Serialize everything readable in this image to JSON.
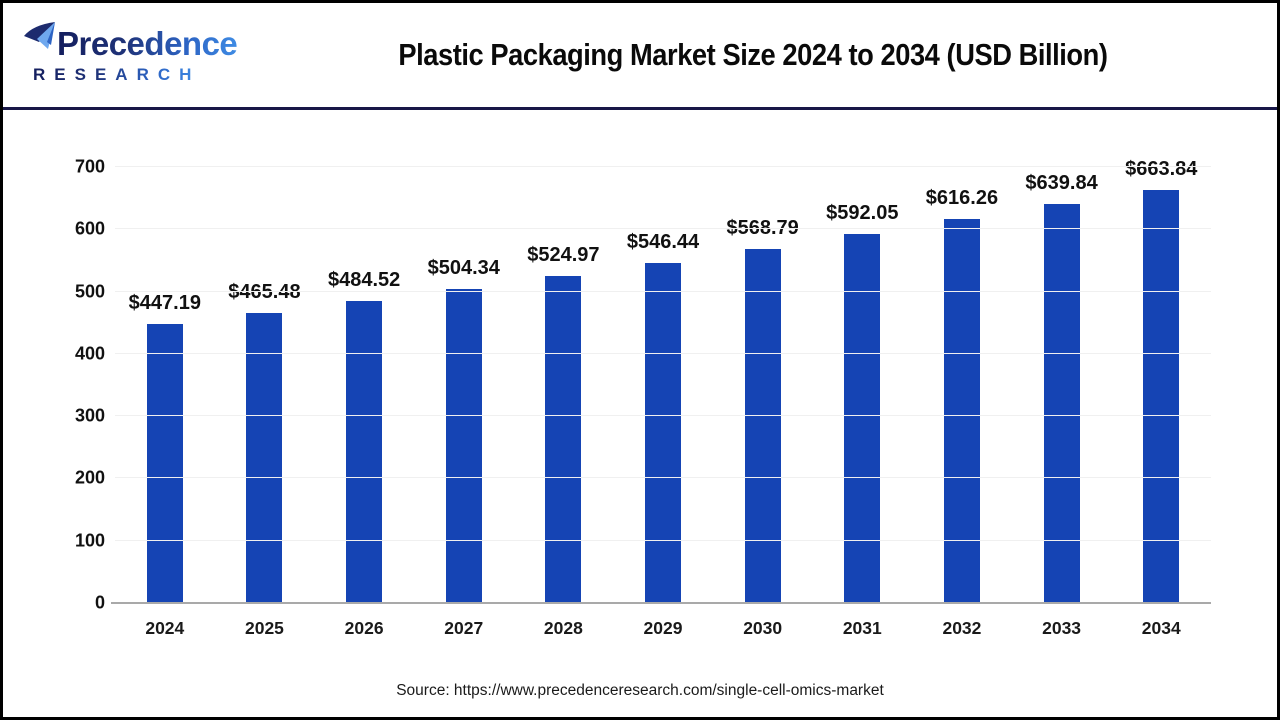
{
  "header": {
    "logo": {
      "name": "Precedence",
      "subtitle": "RESEARCH"
    },
    "title": "Plastic Packaging Market Size 2024 to 2034 (USD Billion)"
  },
  "chart_data": {
    "type": "bar",
    "title": "Plastic Packaging Market Size 2024 to 2034 (USD Billion)",
    "unit": "USD Billion",
    "categories": [
      "2024",
      "2025",
      "2026",
      "2027",
      "2028",
      "2029",
      "2030",
      "2031",
      "2032",
      "2033",
      "2034"
    ],
    "values": [
      447.19,
      465.48,
      484.52,
      504.34,
      524.97,
      546.44,
      568.79,
      592.05,
      616.26,
      639.84,
      663.84
    ],
    "value_labels": [
      "$447.19",
      "$465.48",
      "$484.52",
      "$504.34",
      "$524.97",
      "$546.44",
      "$568.79",
      "$592.05",
      "$616.26",
      "$639.84",
      "$663.84"
    ],
    "xlabel": "",
    "ylabel": "",
    "ylim": [
      0,
      700
    ],
    "yticks": [
      0,
      100,
      200,
      300,
      400,
      500,
      600,
      700
    ],
    "grid": true,
    "legend": "none",
    "bar_color": "#1544B4"
  },
  "footer": {
    "source": "Source: https://www.precedenceresearch.com/single-cell-omics-market"
  },
  "colors": {
    "bar": "#1544B4",
    "header_divider": "#181747",
    "axis_line": "#A9A9A9",
    "gridline": "#F0F0F0",
    "logo_navy": "#1D2B6E",
    "logo_blue": "#3E8BE4",
    "logo_light_blue": "#6FA8EE"
  }
}
